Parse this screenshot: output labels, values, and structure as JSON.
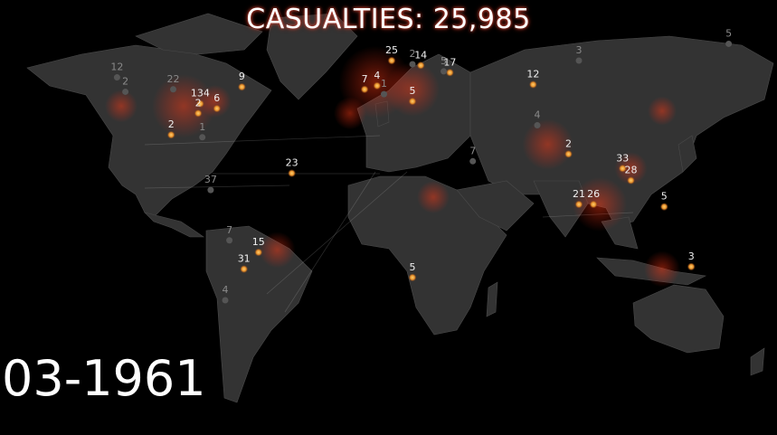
{
  "title": {
    "label": "CASUALTIES:",
    "value": "25,985"
  },
  "date": "03-1961",
  "colors": {
    "background": "#000000",
    "land": "#333333",
    "border": "#4a4a4a",
    "glow": "#ff2a10",
    "event_hot": "#ffb43c",
    "event_white": "#ffffff"
  },
  "markers": [
    {
      "id": "norway",
      "label": "25",
      "coord": [
        10,
        60
      ],
      "tone": "bright"
    },
    {
      "id": "baltic",
      "label": "14",
      "coord": [
        24,
        58
      ],
      "tone": "bright"
    },
    {
      "id": "moscow",
      "label": "17",
      "coord": [
        38,
        55
      ],
      "tone": "bright"
    },
    {
      "id": "moscow-b",
      "label": "5",
      "coord": [
        35,
        55.5
      ],
      "tone": "dim"
    },
    {
      "id": "urals",
      "label": "2",
      "coord": [
        20,
        58.5
      ],
      "tone": "dim"
    },
    {
      "id": "siberia",
      "label": "3",
      "coord": [
        100,
        60
      ],
      "tone": "dim"
    },
    {
      "id": "arctic",
      "label": "5",
      "coord": [
        172,
        67
      ],
      "tone": "dim"
    },
    {
      "id": "kazakh",
      "label": "12",
      "coord": [
        78,
        50
      ],
      "tone": "bright"
    },
    {
      "id": "europe-a",
      "label": "7",
      "coord": [
        -3,
        48
      ],
      "tone": "bright"
    },
    {
      "id": "europe-b",
      "label": "4",
      "coord": [
        3,
        49.5
      ],
      "tone": "bright"
    },
    {
      "id": "europe-c",
      "label": "1",
      "coord": [
        6.3,
        46
      ],
      "tone": "dim"
    },
    {
      "id": "balkans",
      "label": "5",
      "coord": [
        20,
        43
      ],
      "tone": "bright"
    },
    {
      "id": "tibet",
      "label": "4",
      "coord": [
        80,
        33
      ],
      "tone": "dim"
    },
    {
      "id": "arabia",
      "label": "7",
      "coord": [
        49,
        18
      ],
      "tone": "dim"
    },
    {
      "id": "burma",
      "label": "2",
      "coord": [
        95,
        21
      ],
      "tone": "bright"
    },
    {
      "id": "philippines",
      "label": "33",
      "coord": [
        121,
        15
      ],
      "tone": "bright"
    },
    {
      "id": "philippines-b",
      "label": "28",
      "coord": [
        125,
        10
      ],
      "tone": "bright"
    },
    {
      "id": "indonesia-a",
      "label": "21",
      "coord": [
        100,
        0
      ],
      "tone": "bright"
    },
    {
      "id": "indonesia-b",
      "label": "26",
      "coord": [
        107,
        0
      ],
      "tone": "bright"
    },
    {
      "id": "papua",
      "label": "5",
      "coord": [
        141,
        -1
      ],
      "tone": "bright"
    },
    {
      "id": "australia",
      "label": "3",
      "coord": [
        154,
        -26
      ],
      "tone": "bright"
    },
    {
      "id": "s-africa",
      "label": "5",
      "coord": [
        20,
        -30.5
      ],
      "tone": "bright"
    },
    {
      "id": "atlantic",
      "label": "23",
      "coord": [
        -38,
        13
      ],
      "tone": "bright"
    },
    {
      "id": "canada-w",
      "label": "12",
      "coord": [
        -122,
        53
      ],
      "tone": "dim"
    },
    {
      "id": "canada-w2",
      "label": "2",
      "coord": [
        -118,
        47
      ],
      "tone": "dim"
    },
    {
      "id": "canada",
      "label": "22",
      "coord": [
        -95,
        48
      ],
      "tone": "dim"
    },
    {
      "id": "great-lakes",
      "label": "134",
      "coord": [
        -82,
        42
      ],
      "tone": "bright"
    },
    {
      "id": "east-coast",
      "label": "6",
      "coord": [
        -74,
        40
      ],
      "tone": "bright"
    },
    {
      "id": "ohio",
      "label": "2",
      "coord": [
        -83,
        38
      ],
      "tone": "bright"
    },
    {
      "id": "labrador",
      "label": "9",
      "coord": [
        -62,
        49
      ],
      "tone": "bright"
    },
    {
      "id": "texas",
      "label": "2",
      "coord": [
        -96,
        29
      ],
      "tone": "bright"
    },
    {
      "id": "florida",
      "label": "1",
      "coord": [
        -81,
        28
      ],
      "tone": "dim"
    },
    {
      "id": "colombia",
      "label": "37",
      "coord": [
        -77,
        6
      ],
      "tone": "dim"
    },
    {
      "id": "peru",
      "label": "7",
      "coord": [
        -68,
        -15
      ],
      "tone": "dim"
    },
    {
      "id": "brazil",
      "label": "15",
      "coord": [
        -54,
        -20
      ],
      "tone": "bright"
    },
    {
      "id": "argentina",
      "label": "31",
      "coord": [
        -61,
        -27
      ],
      "tone": "bright"
    },
    {
      "id": "patagonia",
      "label": "4",
      "coord": [
        -70,
        -40
      ],
      "tone": "dim"
    }
  ]
}
